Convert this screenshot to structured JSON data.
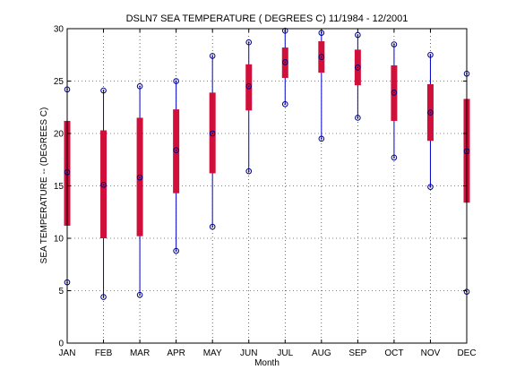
{
  "chart_data": {
    "type": "box",
    "title": "DSLN7  SEA TEMPERATURE ( DEGREES C) 11/1984 - 12/2001",
    "xlabel": "Month",
    "ylabel": "SEA TEMPERATURE -- (DEGREES C)",
    "ylim": [
      0,
      30
    ],
    "yticks": [
      "0",
      "5",
      "10",
      "15",
      "20",
      "25",
      "30"
    ],
    "grid": true,
    "categories": [
      "JAN",
      "FEB",
      "MAR",
      "APR",
      "MAY",
      "JUN",
      "JUL",
      "AUG",
      "SEP",
      "OCT",
      "NOV",
      "DEC"
    ],
    "series": [
      {
        "min": [
          5.8,
          4.4,
          4.6,
          8.8,
          11.1,
          16.4,
          22.8,
          19.5,
          21.5,
          17.7,
          14.9,
          4.9
        ],
        "q1": [
          11.2,
          10.0,
          10.2,
          14.3,
          16.2,
          22.2,
          25.3,
          25.8,
          24.6,
          21.2,
          19.3,
          13.4
        ],
        "median": [
          16.3,
          15.1,
          15.8,
          18.4,
          20.0,
          24.5,
          26.8,
          27.3,
          26.3,
          23.9,
          22.0,
          18.3
        ],
        "q3": [
          21.2,
          20.3,
          21.5,
          22.3,
          23.9,
          26.6,
          28.2,
          28.8,
          28.0,
          26.5,
          24.7,
          23.3
        ],
        "max": [
          24.2,
          24.1,
          24.5,
          25.0,
          27.4,
          28.7,
          29.8,
          29.6,
          29.4,
          28.5,
          27.5,
          25.7
        ]
      }
    ],
    "colors": {
      "box": "#d0103a",
      "whisker": "#0000cc",
      "marker": "#000080",
      "grid": "#000000"
    }
  }
}
